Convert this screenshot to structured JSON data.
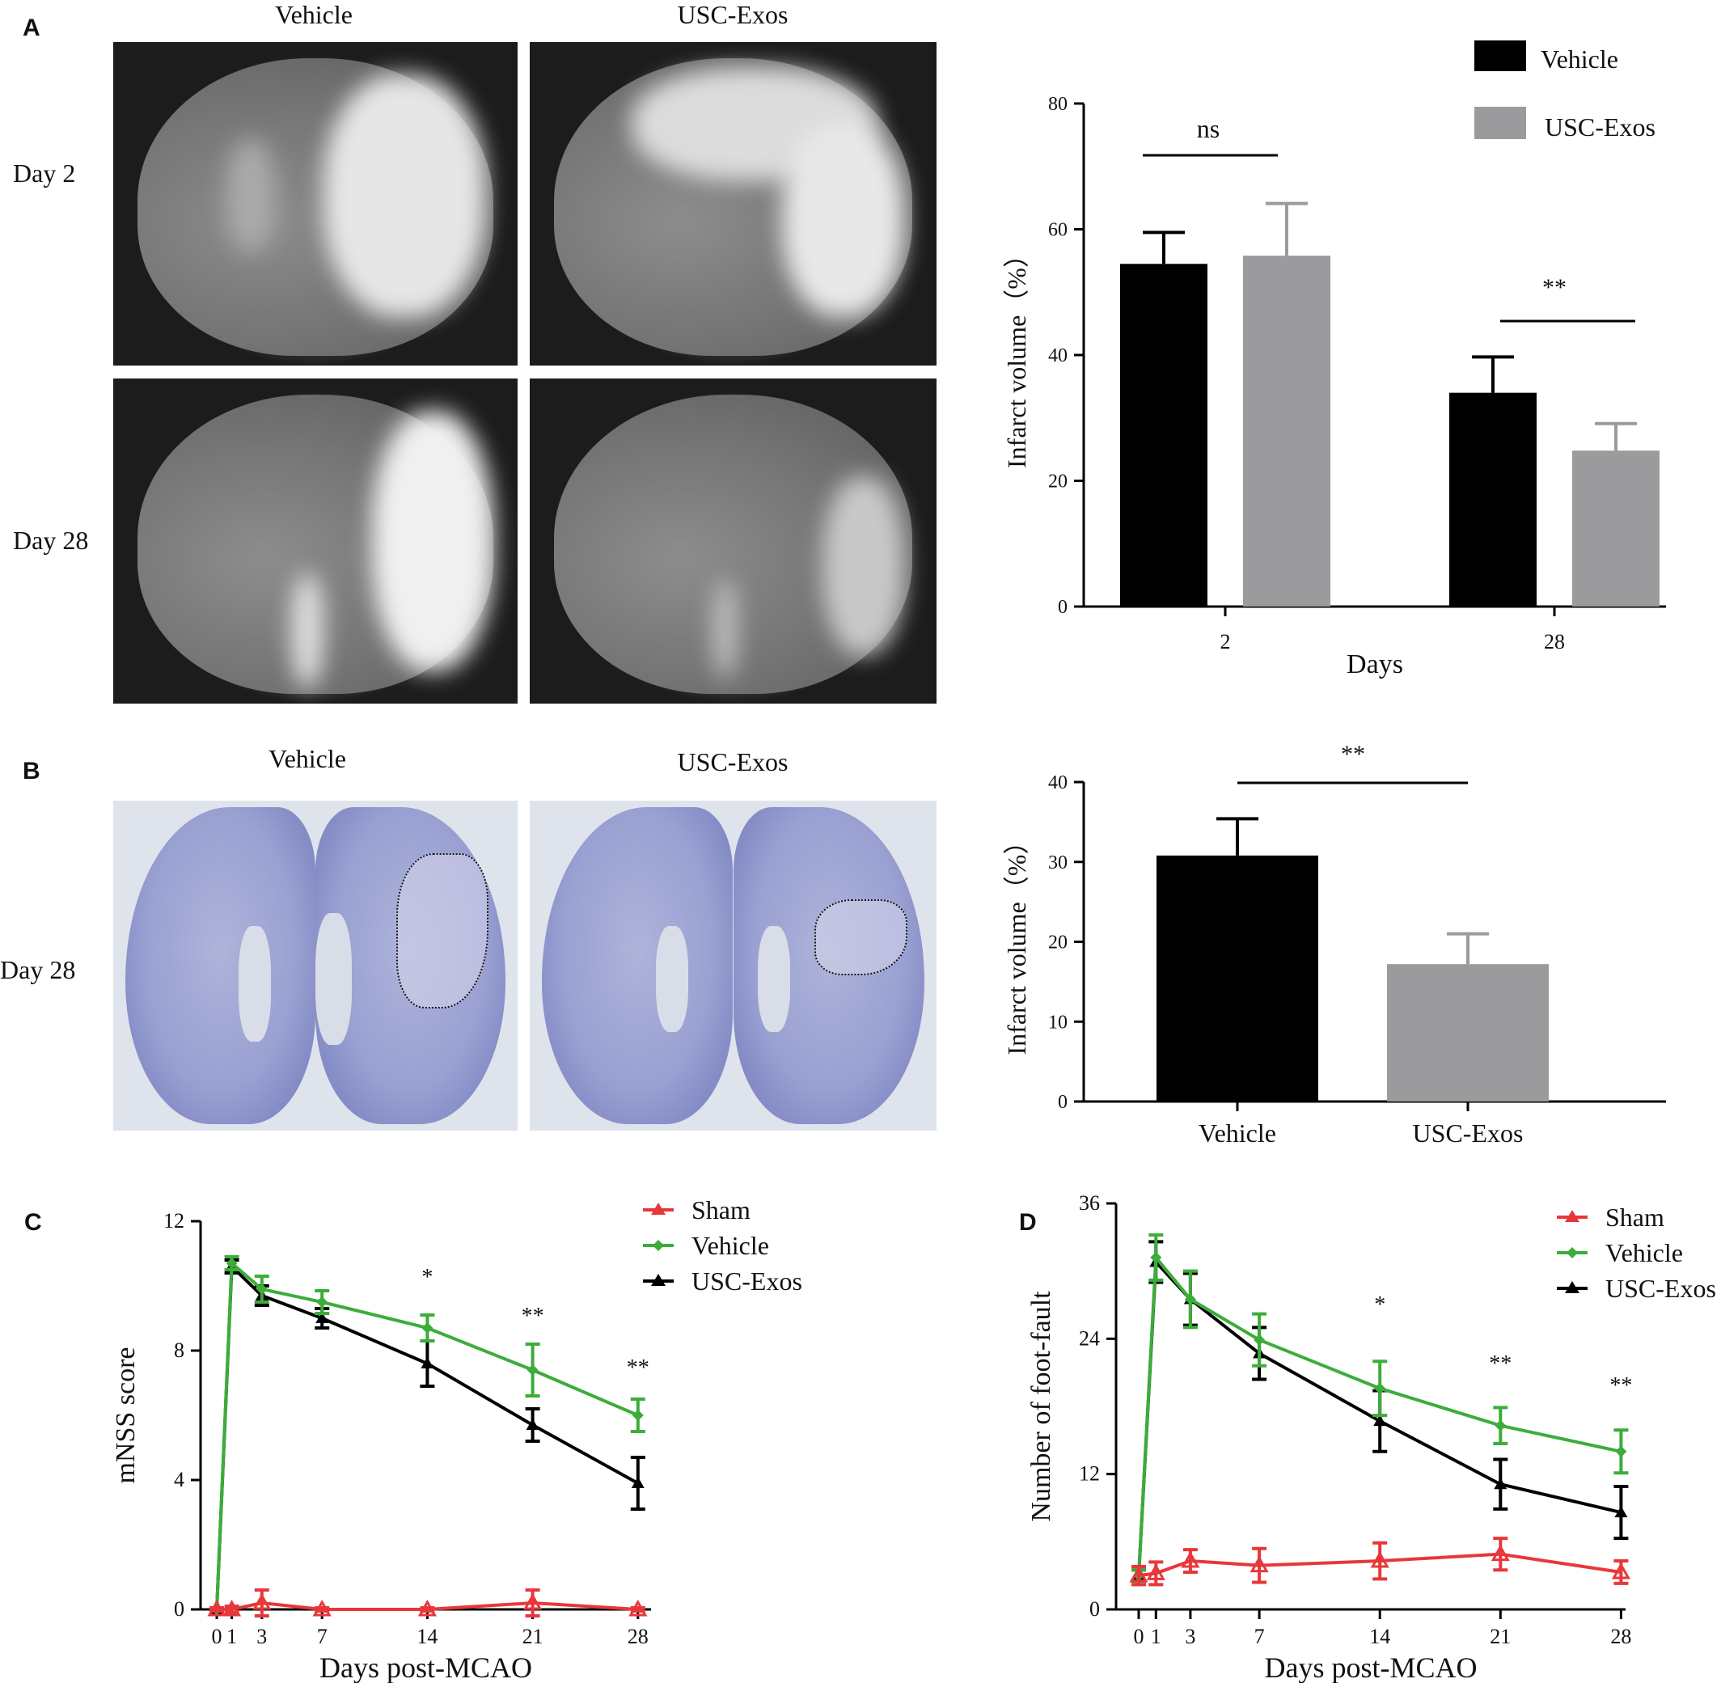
{
  "panels": {
    "A": {
      "label": "A",
      "col_headers": [
        "Vehicle",
        "USC-Exos"
      ],
      "row_labels": [
        "Day 2",
        "Day 28"
      ]
    },
    "B": {
      "label": "B",
      "col_headers": [
        "Vehicle",
        "USC-Exos"
      ],
      "row_label": "Day 28"
    },
    "C": {
      "label": "C"
    },
    "D": {
      "label": "D"
    }
  },
  "colors": {
    "vehicle_bar": "#000000",
    "usc_bar": "#9b9b9d",
    "sham": "#e8373a",
    "vehicle_line": "#3cad3a",
    "usc_line": "#000000"
  },
  "chart_data": [
    {
      "id": "A_bar",
      "type": "bar",
      "categories": [
        "2",
        "28"
      ],
      "series": [
        {
          "name": "Vehicle",
          "values": [
            54.5,
            34.0
          ],
          "errors": [
            5.0,
            5.7
          ]
        },
        {
          "name": "USC-Exos",
          "values": [
            55.8,
            24.8
          ],
          "errors": [
            8.3,
            4.3
          ]
        }
      ],
      "xlabel": "Days",
      "ylabel": "Infarct volume（%）",
      "ylim": [
        0,
        80
      ],
      "yticks": [
        0,
        20,
        40,
        60,
        80
      ],
      "annotations": [
        "ns",
        "**"
      ],
      "legend": "top-right"
    },
    {
      "id": "B_bar",
      "type": "bar",
      "categories": [
        "Vehicle",
        "USC-Exos"
      ],
      "values": [
        30.8,
        17.2
      ],
      "errors": [
        4.6,
        3.8
      ],
      "ylabel": "Infarct volume（%）",
      "ylim": [
        0,
        40
      ],
      "yticks": [
        0,
        10,
        20,
        30,
        40
      ],
      "annotations": [
        "**"
      ]
    },
    {
      "id": "C_line",
      "type": "line",
      "x": [
        0,
        1,
        3,
        7,
        14,
        21,
        28
      ],
      "xticks": [
        "0",
        "1",
        "3",
        "7",
        "14",
        "21",
        "28"
      ],
      "series": [
        {
          "name": "Sham",
          "values": [
            0,
            0,
            0.2,
            0,
            0,
            0.2,
            0
          ],
          "errors": [
            0.05,
            0.1,
            0.4,
            0.05,
            0.05,
            0.4,
            0.05
          ]
        },
        {
          "name": "Vehicle",
          "values": [
            0,
            10.7,
            9.9,
            9.5,
            8.7,
            7.4,
            6.0
          ],
          "errors": [
            0,
            0.2,
            0.4,
            0.35,
            0.4,
            0.8,
            0.5
          ]
        },
        {
          "name": "USC-Exos",
          "values": [
            0,
            10.6,
            9.7,
            9.0,
            7.6,
            5.7,
            3.9
          ],
          "errors": [
            0,
            0.2,
            0.3,
            0.3,
            0.7,
            0.5,
            0.8
          ]
        }
      ],
      "xlabel": "Days post-MCAO",
      "ylabel": "mNSS score",
      "ylim": [
        0,
        12
      ],
      "yticks": [
        0,
        4,
        8,
        12
      ],
      "annotations": [
        {
          "x": 14,
          "text": "*"
        },
        {
          "x": 21,
          "text": "**"
        },
        {
          "x": 28,
          "text": "**"
        }
      ],
      "legend": "top-right"
    },
    {
      "id": "D_line",
      "type": "line",
      "x": [
        0,
        1,
        3,
        7,
        14,
        21,
        28
      ],
      "xticks": [
        "0",
        "1",
        "3",
        "7",
        "14",
        "21",
        "28"
      ],
      "series": [
        {
          "name": "Sham",
          "values": [
            3,
            3.2,
            4.3,
            3.9,
            4.3,
            4.9,
            3.3
          ],
          "errors": [
            0.8,
            1.0,
            1.0,
            1.5,
            1.6,
            1.4,
            1.0
          ]
        },
        {
          "name": "Vehicle",
          "values": [
            3,
            31.2,
            27.5,
            23.9,
            19.6,
            16.3,
            14.0
          ],
          "errors": [
            0.5,
            2.0,
            2.5,
            2.3,
            2.4,
            1.6,
            1.9
          ]
        },
        {
          "name": "USC-Exos",
          "values": [
            3,
            30.8,
            27.5,
            22.7,
            16.7,
            11.1,
            8.6
          ],
          "errors": [
            0.5,
            1.8,
            2.3,
            2.3,
            2.7,
            2.2,
            2.3
          ]
        }
      ],
      "xlabel": "Days post-MCAO",
      "ylabel": "Number of foot-fault",
      "ylim": [
        0,
        36
      ],
      "yticks": [
        0,
        12,
        24,
        36
      ],
      "annotations": [
        {
          "x": 14,
          "text": "*"
        },
        {
          "x": 21,
          "text": "**"
        },
        {
          "x": 28,
          "text": "**"
        }
      ],
      "legend": "top-right"
    }
  ]
}
